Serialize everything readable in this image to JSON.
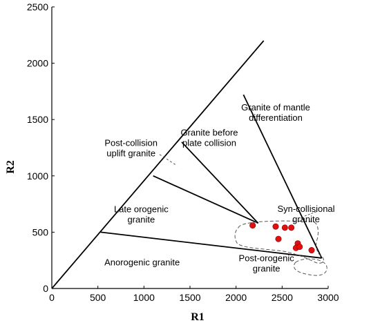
{
  "chart_data": {
    "type": "scatter",
    "title": "",
    "xlabel": "R1",
    "ylabel": "R2",
    "xlim": [
      0,
      3000
    ],
    "ylim": [
      0,
      2500
    ],
    "xticks": [
      0,
      500,
      1000,
      1500,
      2000,
      2500,
      3000
    ],
    "yticks": [
      0,
      500,
      1000,
      1500,
      2000,
      2500
    ],
    "grid": false,
    "legend": "none",
    "colors": {
      "points": "#e01010",
      "lines": "#000000",
      "dashed": "#555555"
    },
    "boundaries": [
      {
        "from": [
          0,
          0
        ],
        "to": [
          2300,
          2200
        ]
      },
      {
        "from": [
          2080,
          1720
        ],
        "to": [
          2930,
          270
        ]
      },
      {
        "from": [
          530,
          500
        ],
        "to": [
          2930,
          270
        ]
      },
      {
        "from": [
          1100,
          1000
        ],
        "to": [
          2240,
          580
        ]
      },
      {
        "from": [
          1410,
          1300
        ],
        "to": [
          2240,
          580
        ]
      },
      {
        "from": [
          1170,
          1190
        ],
        "to": [
          1360,
          1090
        ],
        "dashed": true
      }
    ],
    "fields": [
      {
        "id": "syn-collisional",
        "lines": [
          "Syn-collisional",
          "granite"
        ],
        "x": 2760,
        "y": 660
      },
      {
        "id": "mantle",
        "lines": [
          "Granite of mantle",
          "differentiation"
        ],
        "x": 2430,
        "y": 1560
      },
      {
        "id": "before-plate",
        "lines": [
          "Granite before",
          "plate collision"
        ],
        "x": 1710,
        "y": 1335
      },
      {
        "id": "post-collision",
        "lines": [
          "Post-collision",
          "uplift granite"
        ],
        "x": 860,
        "y": 1245
      },
      {
        "id": "late-orogenic",
        "lines": [
          "Late orogenic",
          "granite"
        ],
        "x": 970,
        "y": 655
      },
      {
        "id": "anorogenic",
        "lines": [
          "Anorogenic granite"
        ],
        "x": 980,
        "y": 230
      },
      {
        "id": "post-orogenic",
        "lines": [
          "Post-orogenic",
          "granite"
        ],
        "x": 2330,
        "y": 220
      }
    ],
    "series": [
      {
        "points": [
          {
            "x": 2180,
            "y": 560
          },
          {
            "x": 2430,
            "y": 550
          },
          {
            "x": 2530,
            "y": 540
          },
          {
            "x": 2600,
            "y": 540
          },
          {
            "x": 2460,
            "y": 440
          },
          {
            "x": 2670,
            "y": 400
          },
          {
            "x": 2650,
            "y": 360
          },
          {
            "x": 2690,
            "y": 370
          },
          {
            "x": 2820,
            "y": 340
          }
        ]
      }
    ]
  }
}
